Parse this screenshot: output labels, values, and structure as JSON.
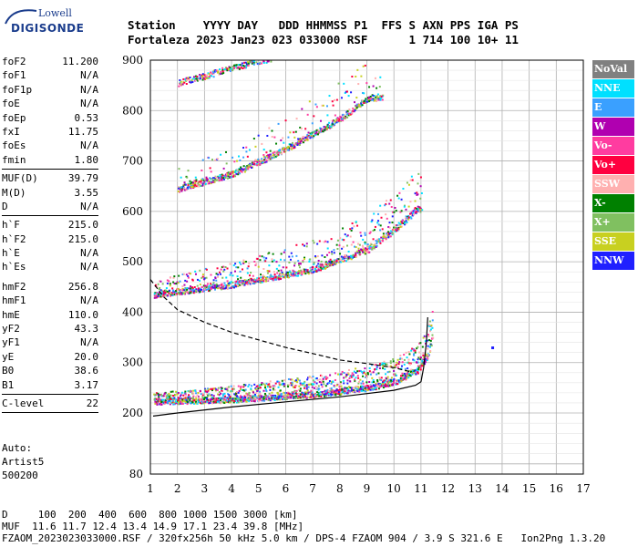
{
  "logo": {
    "line1": "Lowell",
    "line2": "DIGISONDE"
  },
  "header": {
    "labels": "Station    YYYY DAY   DDD HHMMSS P1  FFS S AXN PPS IGA PS",
    "values": "Fortaleza 2023 Jan23 023 033000 RSF      1 714 100 10+ 11"
  },
  "parameters": [
    {
      "name": "foF2",
      "value": "11.200"
    },
    {
      "name": "foF1",
      "value": "N/A"
    },
    {
      "name": "foF1p",
      "value": "N/A"
    },
    {
      "name": "foE",
      "value": "N/A"
    },
    {
      "name": "foEp",
      "value": "0.53"
    },
    {
      "name": "fxI",
      "value": "11.75"
    },
    {
      "name": "foEs",
      "value": "N/A"
    },
    {
      "name": "fmin",
      "value": "1.80"
    },
    {
      "name": "MUF(D)",
      "value": "39.79"
    },
    {
      "name": "M(D)",
      "value": "3.55"
    },
    {
      "name": "D",
      "value": "N/A"
    },
    {
      "name": "h`F",
      "value": "215.0"
    },
    {
      "name": "h`F2",
      "value": "215.0"
    },
    {
      "name": "h`E",
      "value": "N/A"
    },
    {
      "name": "h`Es",
      "value": "N/A"
    },
    {
      "name": "hmF2",
      "value": "256.8"
    },
    {
      "name": "hmF1",
      "value": "N/A"
    },
    {
      "name": "hmE",
      "value": "110.0"
    },
    {
      "name": "yF2",
      "value": "43.3"
    },
    {
      "name": "yF1",
      "value": "N/A"
    },
    {
      "name": "yE",
      "value": "20.0"
    },
    {
      "name": "B0",
      "value": "38.6"
    },
    {
      "name": "B1",
      "value": "3.17"
    },
    {
      "name": "C-level",
      "value": "22"
    }
  ],
  "auto": {
    "line1": "Auto:",
    "line2": "Artist5",
    "line3": "500200"
  },
  "legend": [
    {
      "label": "NoVal",
      "color": "#808080"
    },
    {
      "label": "NNE",
      "color": "#00e0ff"
    },
    {
      "label": "E",
      "color": "#3aa0ff"
    },
    {
      "label": "W",
      "color": "#b000b0"
    },
    {
      "label": "Vo-",
      "color": "#ff3ca0"
    },
    {
      "label": "Vo+",
      "color": "#ff0040"
    },
    {
      "label": "SSW",
      "color": "#ffb0b0"
    },
    {
      "label": "X-",
      "color": "#008000"
    },
    {
      "label": "X+",
      "color": "#80c060"
    },
    {
      "label": "SSE",
      "color": "#c8d020"
    },
    {
      "label": "NNW",
      "color": "#2020ff"
    }
  ],
  "footer": {
    "line1": "D     100  200  400  600  800 1000 1500 3000 [km]",
    "line2": "MUF  11.6 11.7 12.4 13.4 14.9 17.1 23.4 39.8 [MHz]",
    "line3": "FZAOM_2023023033000.RSF / 320fx256h 50 kHz 5.0 km / DPS-4 FZAOM 904 / 3.9 S 321.6 E   Ion2Png 1.3.20"
  },
  "chart_data": {
    "type": "scatter",
    "title": "",
    "xlabel": "",
    "ylabel": "",
    "xlim": [
      1,
      17
    ],
    "ylim": [
      80,
      900
    ],
    "x_ticks": [
      "1",
      "2",
      "3",
      "4",
      "5",
      "6",
      "7",
      "8",
      "9",
      "10",
      "11",
      "12",
      "13",
      "14",
      "15",
      "16",
      "17"
    ],
    "y_ticks": [
      {
        "value": 80,
        "label": "80"
      },
      {
        "value": 200,
        "label": "200"
      },
      {
        "value": 300,
        "label": "300"
      },
      {
        "value": 400,
        "label": "400"
      },
      {
        "value": 500,
        "label": "500"
      },
      {
        "value": 600,
        "label": "600"
      },
      {
        "value": 700,
        "label": "700"
      },
      {
        "value": 800,
        "label": "800"
      },
      {
        "value": 900,
        "label": "900"
      }
    ],
    "y_scale_breaks": [
      [
        80,
        200,
        "compressed"
      ],
      [
        200,
        900,
        "linear"
      ]
    ],
    "grid": true,
    "traces": [
      {
        "name": "O-trace 1st hop",
        "x_start": 1.1,
        "x_end": 11.4,
        "h_min": 215,
        "h_rise": [
          [
            1.1,
            218
          ],
          [
            4,
            222
          ],
          [
            7,
            232
          ],
          [
            9,
            245
          ],
          [
            10,
            258
          ],
          [
            10.8,
            280
          ],
          [
            11.2,
            310
          ],
          [
            11.4,
            360
          ]
        ],
        "color_mix": [
          "#2020ff",
          "#b000b0",
          "#ff3ca0",
          "#ff0040",
          "#008000",
          "#3aa0ff"
        ]
      },
      {
        "name": "2nd hop",
        "x_start": 1.1,
        "x_end": 11.0,
        "h_rise": [
          [
            1.1,
            430
          ],
          [
            4,
            450
          ],
          [
            7,
            480
          ],
          [
            9,
            520
          ],
          [
            10,
            560
          ],
          [
            10.8,
            600
          ]
        ]
      },
      {
        "name": "3rd hop",
        "x_start": 2.0,
        "x_end": 9.5,
        "h_rise": [
          [
            2,
            640
          ],
          [
            4,
            670
          ],
          [
            6,
            720
          ],
          [
            8,
            780
          ],
          [
            9,
            820
          ]
        ]
      },
      {
        "name": "4th hop",
        "x_start": 2.0,
        "x_end": 5.5,
        "h_rise": [
          [
            2,
            850
          ],
          [
            4,
            880
          ],
          [
            5.5,
            900
          ]
        ]
      }
    ],
    "profile_solid": [
      [
        1.1,
        194
      ],
      [
        2,
        200
      ],
      [
        4,
        212
      ],
      [
        6,
        222
      ],
      [
        8,
        232
      ],
      [
        10,
        245
      ],
      [
        10.8,
        255
      ],
      [
        11.0,
        262
      ],
      [
        11.1,
        290
      ],
      [
        11.2,
        340
      ],
      [
        11.25,
        390
      ]
    ],
    "profile_dashed": [
      [
        1.0,
        465
      ],
      [
        1.5,
        430
      ],
      [
        2,
        405
      ],
      [
        3,
        380
      ],
      [
        4,
        360
      ],
      [
        5,
        345
      ],
      [
        6,
        330
      ],
      [
        7,
        318
      ],
      [
        8,
        305
      ],
      [
        9,
        298
      ],
      [
        10,
        290
      ],
      [
        10.6,
        282
      ]
    ],
    "isolated_points": [
      [
        13.6,
        332
      ]
    ]
  }
}
